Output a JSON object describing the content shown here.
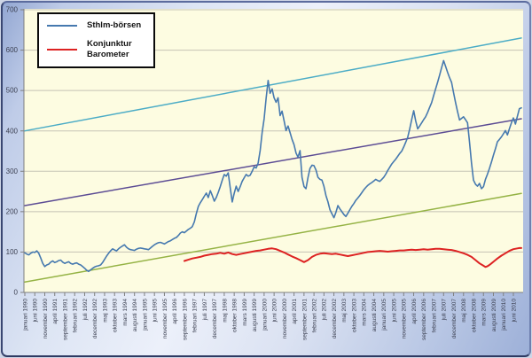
{
  "window": {
    "description": "Line chart comparing Stockholm stock exchange index with the economic tendency (Konjunktur) barometer, januari 1990 - juni 2010"
  },
  "legend": {
    "position": "top-left",
    "items": [
      {
        "label": "Sthlm-börsen",
        "color": "#4679AF"
      },
      {
        "label": "Konjunktur Barometer",
        "color": "#DD2222"
      }
    ]
  },
  "colors": {
    "plot_background": "#FDFCE1",
    "outer_background_gradient": [
      "#93A7D2",
      "#ECF0FA",
      "#9DB0D8"
    ],
    "gridline": "#C6C3B5",
    "axis": "#7F7F7F",
    "tick_label": "#3B3F50",
    "frame_border": "#2E3A62",
    "legend_border": "#0A0A0A",
    "legend_background": "#FFFFFF"
  },
  "chart_data": {
    "type": "line",
    "title": "",
    "xlabel": "",
    "ylabel": "",
    "grid": true,
    "legend_position": "top-left",
    "x_axis": {
      "unit": "month",
      "start_label": "januari 1990",
      "end_label": "juni 2010",
      "months_per_tick": 5,
      "total_months": 250,
      "tick_labels": [
        "januari 1990",
        "juni 1990",
        "november 1990",
        "april 1991",
        "september 1991",
        "februari 1992",
        "juli 1992",
        "december 1992",
        "maj 1993",
        "oktober 1993",
        "mars 1994",
        "augusti 1994",
        "januari 1995",
        "juni 1995",
        "november 1995",
        "april 1996",
        "september 1996",
        "februari 1997",
        "juli 1997",
        "december 1997",
        "maj 1998",
        "oktober 1998",
        "mars 1999",
        "augusti 1999",
        "januari 2000",
        "juni 2000",
        "november 2000",
        "april 2001",
        "september 2001",
        "februari 2002",
        "juli 2002",
        "december 2002",
        "maj 2003",
        "oktober 2003",
        "mars 2004",
        "augusti 2004",
        "januari 2005",
        "juni 2005",
        "november 2005",
        "april 2006",
        "september 2006",
        "februari 2007",
        "juli 2007",
        "december 2007",
        "maj 2008",
        "oktober 2008",
        "mars 2009",
        "augusti 2009",
        "januari 2010",
        "juni 2010"
      ]
    },
    "y_axis": {
      "min": 0,
      "max": 700,
      "tick_step": 100,
      "tick_labels": [
        "0",
        "100",
        "200",
        "300",
        "400",
        "500",
        "600",
        "700"
      ]
    },
    "series": [
      {
        "name": "Sthlm-börsen",
        "color": "#4679AF",
        "width": 1.6,
        "start_month": 0,
        "values": [
          98,
          95,
          93,
          97,
          100,
          99,
          103,
          97,
          85,
          72,
          64,
          68,
          70,
          75,
          78,
          74,
          76,
          79,
          80,
          75,
          72,
          74,
          76,
          72,
          70,
          72,
          73,
          70,
          68,
          64,
          60,
          55,
          52,
          56,
          60,
          63,
          65,
          66,
          68,
          74,
          82,
          90,
          97,
          103,
          108,
          105,
          103,
          108,
          112,
          115,
          118,
          112,
          108,
          106,
          105,
          104,
          107,
          109,
          110,
          109,
          108,
          107,
          106,
          110,
          114,
          118,
          121,
          123,
          124,
          122,
          120,
          123,
          126,
          128,
          131,
          134,
          136,
          141,
          147,
          150,
          148,
          152,
          156,
          159,
          163,
          175,
          195,
          213,
          222,
          230,
          238,
          246,
          235,
          252,
          240,
          226,
          235,
          248,
          262,
          278,
          292,
          288,
          296,
          260,
          224,
          245,
          263,
          250,
          262,
          275,
          284,
          292,
          288,
          290,
          300,
          311,
          308,
          320,
          351,
          395,
          430,
          480,
          525,
          493,
          504,
          482,
          471,
          482,
          438,
          449,
          425,
          401,
          412,
          396,
          379,
          366,
          345,
          335,
          351,
          285,
          262,
          257,
          285,
          307,
          315,
          314,
          303,
          285,
          280,
          278,
          263,
          240,
          225,
          205,
          195,
          185,
          198,
          215,
          207,
          200,
          193,
          188,
          196,
          205,
          213,
          220,
          228,
          234,
          240,
          247,
          254,
          260,
          265,
          269,
          272,
          276,
          280,
          277,
          275,
          280,
          285,
          293,
          302,
          310,
          318,
          324,
          330,
          337,
          344,
          350,
          360,
          372,
          384,
          405,
          428,
          450,
          425,
          405,
          412,
          420,
          428,
          435,
          446,
          458,
          470,
          487,
          504,
          520,
          538,
          556,
          574,
          560,
          545,
          532,
          520,
          495,
          470,
          448,
          427,
          431,
          435,
          428,
          420,
          373,
          320,
          278,
          268,
          263,
          270,
          257,
          262,
          280,
          293,
          307,
          323,
          340,
          356,
          373,
          379,
          385,
          393,
          401,
          390,
          405,
          420,
          432,
          417,
          436,
          455,
          457
        ]
      },
      {
        "name": "Konjunktur Barometer",
        "color": "#DD2222",
        "width": 2,
        "points": [
          [
            80,
            78
          ],
          [
            82,
            81
          ],
          [
            84,
            84
          ],
          [
            86,
            86
          ],
          [
            88,
            88
          ],
          [
            90,
            91
          ],
          [
            92,
            93
          ],
          [
            94,
            95
          ],
          [
            96,
            96
          ],
          [
            98,
            98
          ],
          [
            100,
            96
          ],
          [
            102,
            99
          ],
          [
            104,
            95
          ],
          [
            106,
            93
          ],
          [
            108,
            95
          ],
          [
            110,
            97
          ],
          [
            112,
            99
          ],
          [
            114,
            101
          ],
          [
            116,
            103
          ],
          [
            118,
            104
          ],
          [
            120,
            106
          ],
          [
            122,
            108
          ],
          [
            124,
            109
          ],
          [
            126,
            107
          ],
          [
            128,
            103
          ],
          [
            130,
            99
          ],
          [
            132,
            94
          ],
          [
            134,
            89
          ],
          [
            136,
            85
          ],
          [
            138,
            80
          ],
          [
            140,
            75
          ],
          [
            142,
            80
          ],
          [
            144,
            88
          ],
          [
            146,
            93
          ],
          [
            148,
            96
          ],
          [
            150,
            97
          ],
          [
            152,
            96
          ],
          [
            154,
            95
          ],
          [
            156,
            96
          ],
          [
            158,
            94
          ],
          [
            160,
            92
          ],
          [
            162,
            90
          ],
          [
            164,
            92
          ],
          [
            166,
            94
          ],
          [
            168,
            96
          ],
          [
            170,
            98
          ],
          [
            172,
            100
          ],
          [
            174,
            101
          ],
          [
            176,
            102
          ],
          [
            178,
            103
          ],
          [
            180,
            102
          ],
          [
            182,
            101
          ],
          [
            184,
            102
          ],
          [
            186,
            103
          ],
          [
            188,
            104
          ],
          [
            190,
            104
          ],
          [
            192,
            105
          ],
          [
            194,
            106
          ],
          [
            196,
            105
          ],
          [
            198,
            106
          ],
          [
            200,
            107
          ],
          [
            202,
            106
          ],
          [
            204,
            107
          ],
          [
            206,
            108
          ],
          [
            208,
            108
          ],
          [
            210,
            107
          ],
          [
            212,
            106
          ],
          [
            214,
            105
          ],
          [
            216,
            103
          ],
          [
            218,
            100
          ],
          [
            220,
            97
          ],
          [
            222,
            93
          ],
          [
            224,
            88
          ],
          [
            226,
            80
          ],
          [
            228,
            72
          ],
          [
            230,
            66
          ],
          [
            231,
            63
          ],
          [
            232,
            65
          ],
          [
            233,
            68
          ],
          [
            234,
            72
          ],
          [
            235,
            76
          ],
          [
            236,
            80
          ],
          [
            237,
            84
          ],
          [
            239,
            91
          ],
          [
            241,
            97
          ],
          [
            243,
            103
          ],
          [
            245,
            107
          ],
          [
            247,
            109
          ],
          [
            248,
            110
          ],
          [
            249,
            110
          ]
        ]
      },
      {
        "name": "trend-upper",
        "color": "#4BACC6",
        "width": 1.5,
        "points": [
          [
            0,
            400
          ],
          [
            249,
            630
          ]
        ]
      },
      {
        "name": "trend-middle",
        "color": "#5C4C94",
        "width": 1.5,
        "points": [
          [
            0,
            215
          ],
          [
            249,
            430
          ]
        ]
      },
      {
        "name": "trend-lower",
        "color": "#95B345",
        "width": 1.5,
        "points": [
          [
            0,
            26
          ],
          [
            249,
            245
          ]
        ]
      }
    ]
  }
}
